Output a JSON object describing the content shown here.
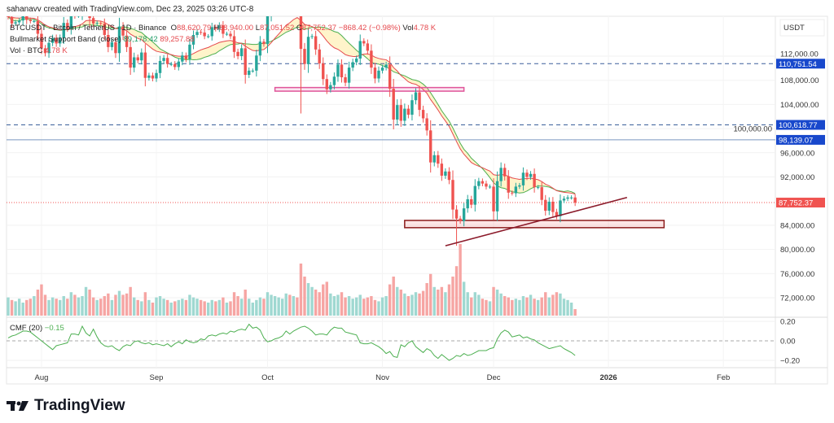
{
  "credit": "sahanavv created with TradingView.com, Dec 23, 2025 03:26 UTC-8",
  "legend": {
    "symbol": "BTCUSDT · Bitcoin / TetherUS · 1D · Binance",
    "o_label": "O",
    "o": "88,620.79",
    "h_label": "H",
    "h": "88,940.00",
    "l_label": "L",
    "l": "87,051.52",
    "c_label": "C",
    "c": "87,752.37",
    "change": "−868.42 (−0.98%)",
    "vol_label": "Vol",
    "vol": "4.78 K",
    "band_name": "Bullmarket Support Band (close)",
    "band_sma": "89,178.42",
    "band_ema": "89,257.88",
    "volume_name": "Vol · BTC",
    "volume_value": "4.78 K"
  },
  "cmf": {
    "name": "CMF (20)",
    "value": "−0.15"
  },
  "logo": "TradingView",
  "colors": {
    "up": "#26a69a",
    "down": "#ef5350",
    "sma": "#4caf50",
    "ema": "#e5484d",
    "band_fill": "#fff3c4",
    "level": "#1848cc",
    "last": "#f05350",
    "zone1": "#e0559a",
    "zone2": "#8b1a1a"
  },
  "chart_data": {
    "type": "candlestick",
    "currency_label": "USDT",
    "interval": "1D",
    "first_date": "2025-07-23",
    "last_date": "2025-12-23",
    "close": [
      118.5,
      117.4,
      117.6,
      117.9,
      119.4,
      118.0,
      117.8,
      117.8,
      115.7,
      113.3,
      112.5,
      114.2,
      115.0,
      114.1,
      115.0,
      117.5,
      116.6,
      119.3,
      118.7,
      118.7,
      120.2,
      123.3,
      118.3,
      117.4,
      117.5,
      117.4,
      115.5,
      113.5,
      114.3,
      112.5,
      116.9,
      115.4,
      113.5,
      110.1,
      111.8,
      111.3,
      112.6,
      108.4,
      108.8,
      108.3,
      109.2,
      111.2,
      111.7,
      110.7,
      110.7,
      110.2,
      111.1,
      112.1,
      111.5,
      113.9,
      115.5,
      116.0,
      115.9,
      115.3,
      115.3,
      116.8,
      116.5,
      117.1,
      115.7,
      115.7,
      115.3,
      112.7,
      112.0,
      113.3,
      108.9,
      109.6,
      109.6,
      112.1,
      114.4,
      114.0,
      118.6,
      120.6,
      122.3,
      122.4,
      123.5,
      124.8,
      121.5,
      123.3,
      121.7,
      113.2,
      110.7,
      115.2,
      115.3,
      113.1,
      110.8,
      108.2,
      106.5,
      107.2,
      108.6,
      110.6,
      108.5,
      107.6,
      110.1,
      111.0,
      111.6,
      114.5,
      114.1,
      112.9,
      110.1,
      108.3,
      109.6,
      110.1,
      110.6,
      106.6,
      101.5,
      103.9,
      101.3,
      103.3,
      102.3,
      104.7,
      106.0,
      103.1,
      101.7,
      99.7,
      94.4,
      95.6,
      94.2,
      92.2,
      92.9,
      91.5,
      86.6,
      85.1,
      84.7,
      86.8,
      88.3,
      87.4,
      90.5,
      91.3,
      90.9,
      90.4,
      90.4,
      86.3,
      91.3,
      93.5,
      92.1,
      89.4,
      89.3,
      90.4,
      90.6,
      92.7,
      92.0,
      92.5,
      90.3,
      90.3,
      88.2,
      86.4,
      87.9,
      86.2,
      85.5,
      88.1,
      88.4,
      88.6,
      88.6,
      87.75
    ],
    "close_unit": "thousand USDT",
    "low_extremes": {
      "2025-10-10": 102.5,
      "2025-11-21": 80.6
    },
    "volume_k_btc": [
      14,
      12,
      11,
      13,
      10,
      12,
      13,
      15,
      20,
      24,
      16,
      12,
      14,
      13,
      12,
      15,
      13,
      18,
      16,
      14,
      15,
      22,
      20,
      14,
      12,
      13,
      15,
      17,
      12,
      16,
      19,
      16,
      17,
      22,
      14,
      12,
      11,
      18,
      12,
      10,
      14,
      15,
      13,
      12,
      10,
      11,
      12,
      13,
      12,
      16,
      14,
      13,
      12,
      11,
      10,
      12,
      11,
      12,
      14,
      10,
      11,
      18,
      15,
      13,
      20,
      13,
      10,
      12,
      14,
      13,
      18,
      16,
      15,
      14,
      13,
      17,
      16,
      15,
      14,
      40,
      30,
      25,
      22,
      20,
      18,
      24,
      26,
      17,
      15,
      16,
      18,
      14,
      15,
      13,
      14,
      16,
      13,
      14,
      15,
      12,
      11,
      14,
      15,
      24,
      30,
      22,
      20,
      17,
      15,
      16,
      18,
      17,
      19,
      25,
      32,
      22,
      20,
      22,
      18,
      24,
      30,
      38,
      55,
      26,
      18,
      14,
      18,
      16,
      13,
      12,
      11,
      22,
      20,
      17,
      15,
      14,
      12,
      13,
      12,
      15,
      14,
      16,
      13,
      12,
      14,
      18,
      14,
      16,
      18,
      17,
      13,
      12,
      10,
      5
    ],
    "cmf_values": [
      0.03,
      0.05,
      0.06,
      0.08,
      0.1,
      0.1,
      0.09,
      0.06,
      0.03,
      0.0,
      -0.03,
      -0.06,
      -0.09,
      -0.05,
      -0.04,
      -0.03,
      -0.02,
      0.07,
      0.07,
      0.06,
      0.15,
      0.08,
      0.05,
      0.12,
      0.04,
      -0.02,
      -0.05,
      -0.06,
      -0.05,
      -0.08,
      -0.1,
      -0.06,
      -0.04,
      -0.05,
      -0.01,
      0.0,
      -0.02,
      -0.03,
      -0.02,
      -0.04,
      -0.03,
      -0.04,
      -0.05,
      -0.03,
      -0.06,
      -0.03,
      -0.01,
      -0.03,
      0.01,
      -0.01,
      -0.02,
      -0.01,
      0.02,
      0.01,
      0.05,
      0.06,
      0.05,
      0.07,
      0.08,
      0.07,
      0.1,
      0.09,
      0.11,
      0.12,
      0.11,
      0.17,
      0.13,
      0.14,
      0.11,
      0.03,
      -0.01,
      0.0,
      0.02,
      0.03,
      0.05,
      0.1,
      0.07,
      0.1,
      0.12,
      0.14,
      0.15,
      0.13,
      0.1,
      0.06,
      0.07,
      0.07,
      0.06,
      0.11,
      0.14,
      0.13,
      0.13,
      0.09,
      0.08,
      0.07,
      0.06,
      -0.02,
      -0.03,
      -0.03,
      -0.02,
      -0.04,
      -0.06,
      -0.09,
      -0.13,
      -0.11,
      -0.16,
      -0.17,
      -0.04,
      -0.06,
      -0.02,
      0.0,
      -0.06,
      -0.09,
      -0.12,
      -0.08,
      -0.1,
      -0.15,
      -0.18,
      -0.14,
      -0.17,
      -0.2,
      -0.18,
      -0.15,
      -0.16,
      -0.13,
      -0.15,
      -0.14,
      -0.12,
      -0.1,
      -0.1,
      -0.1,
      -0.08,
      -0.07,
      0.02,
      0.08,
      0.11,
      0.09,
      0.04,
      0.05,
      0.06,
      0.03,
      0.04,
      0.02,
      0.01,
      -0.02,
      -0.04,
      -0.06,
      -0.08,
      -0.07,
      -0.06,
      -0.05,
      -0.08,
      -0.1,
      -0.12,
      -0.15
    ],
    "price_ticks": [
      "112,000.00",
      "108,000.00",
      "104,000.00",
      "100,000.00",
      "96,000.00",
      "92,000.00",
      "84,000.00",
      "80,000.00",
      "76,000.00",
      "72,000.00"
    ],
    "price_tick_values": [
      112000,
      108000,
      104000,
      100000,
      96000,
      92000,
      84000,
      80000,
      76000,
      72000
    ],
    "cmf_ticks": [
      "0.20",
      "0.00",
      "−0.20"
    ],
    "cmf_tick_values": [
      0.2,
      0,
      -0.2
    ],
    "time_ticks": [
      {
        "label": "Aug",
        "date": "2025-08-01"
      },
      {
        "label": "Sep",
        "date": "2025-09-01"
      },
      {
        "label": "Oct",
        "date": "2025-10-01"
      },
      {
        "label": "Nov",
        "date": "2025-11-01"
      },
      {
        "label": "Dec",
        "date": "2025-12-01"
      },
      {
        "label": "2026",
        "date": "2026-01-01",
        "bold": true
      },
      {
        "label": "Feb",
        "date": "2026-02-01"
      }
    ],
    "levels": [
      {
        "label": "110,751.54",
        "value": 110751.54,
        "style": "dashed"
      },
      {
        "label": "100,618.77",
        "value": 100618.77,
        "style": "dashed"
      },
      {
        "label": "98,139.07",
        "value": 98139.07,
        "style": "solid"
      },
      {
        "label": "87,752.37",
        "value": 87752.37,
        "style": "last"
      }
    ],
    "zones": [
      {
        "from": "2025-10-03",
        "to": "2025-11-23",
        "top": 106800,
        "bottom": 106200,
        "kind": "zone1"
      },
      {
        "from": "2025-11-07",
        "to": "2026-01-16",
        "top": 84800,
        "bottom": 83600,
        "kind": "zone2"
      }
    ],
    "trendline": {
      "from": {
        "date": "2025-11-18",
        "price": 80600
      },
      "to": {
        "date": "2026-01-06",
        "price": 88600
      }
    },
    "overlays": [
      "SMA 20 (green)",
      "EMA 21 (red)"
    ]
  }
}
